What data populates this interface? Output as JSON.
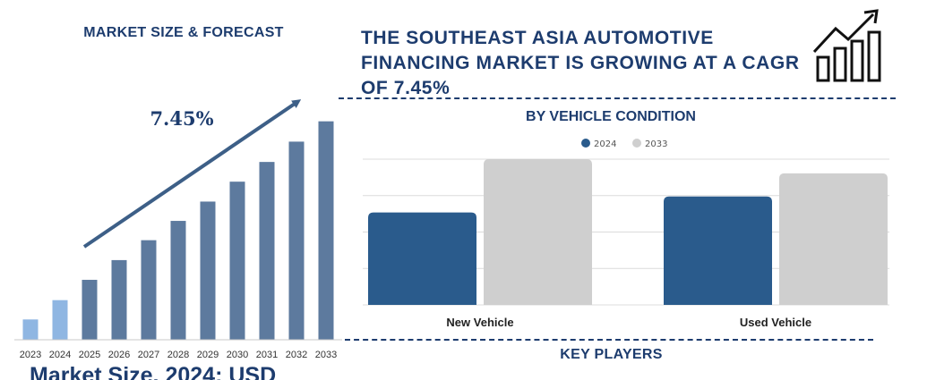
{
  "left_panel": {
    "title": "MARKET SIZE & FORECAST",
    "bottom_text": "Market Size, 2024: USD"
  },
  "main_title": "THE SOUTHEAST ASIA AUTOMOTIVE FINANCING MARKET IS GROWING AT A CAGR OF 7.45%",
  "right_panel": {
    "key_players_title": "KEY PLAYERS"
  },
  "icons": {
    "growth": "growth-chart-icon"
  },
  "colors": {
    "navy": "#1d3c6e",
    "bar_past": "#8fb6e2",
    "bar_forecast": "#5d7a9e",
    "series_2024": "#2a5b8c",
    "series_2033": "#cfcfcf"
  },
  "chart_data": [
    {
      "type": "bar",
      "title": "",
      "categories": [
        "2023",
        "2024",
        "2025",
        "2026",
        "2027",
        "2028",
        "2029",
        "2030",
        "2031",
        "2032",
        "2033"
      ],
      "values": [
        1.0,
        1.95,
        2.95,
        3.92,
        4.9,
        5.85,
        6.8,
        7.78,
        8.75,
        9.75,
        10.75
      ],
      "annotation": "7.45%",
      "xlabel": "",
      "ylabel": "",
      "ylim": [
        0,
        11
      ]
    },
    {
      "type": "bar",
      "title": "BY VEHICLE CONDITION",
      "categories": [
        "New Vehicle",
        "Used Vehicle"
      ],
      "series": [
        {
          "name": "2024",
          "values": [
            52,
            61
          ]
        },
        {
          "name": "2033",
          "values": [
            82,
            74
          ]
        }
      ],
      "ylim": [
        0,
        82
      ],
      "grid": true,
      "legend": "top-center",
      "xlabel": "",
      "ylabel": ""
    }
  ]
}
